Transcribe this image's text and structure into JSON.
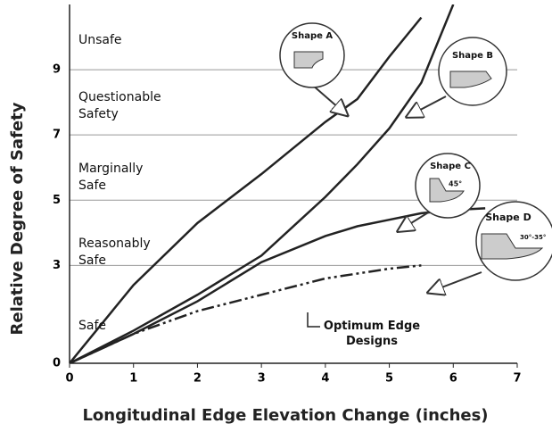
{
  "chart_data": {
    "type": "line",
    "xlabel": "Longitudinal Edge Elevation Change (inches)",
    "ylabel": "Relative Degree of Safety",
    "zones": [
      "Unsafe",
      "Questionable Safety",
      "Marginally Safe",
      "Reasonably Safe",
      "Safe"
    ],
    "annotations": [
      "Shape A",
      "Shape B",
      "Shape C",
      "45°",
      "Shape D",
      "30°-35°",
      "Optimum Edge Designs"
    ],
    "x": [
      0,
      1,
      2,
      3,
      4,
      4.5,
      5,
      5.5,
      6,
      6.5
    ],
    "series": [
      {
        "color": "#222222",
        "dash": false,
        "values": [
          0,
          2.4,
          4.3,
          5.8,
          7.4,
          8.1,
          9.4,
          10.6,
          null,
          null
        ]
      },
      {
        "color": "#222222",
        "dash": false,
        "values": [
          0,
          1.0,
          2.1,
          3.3,
          5.1,
          6.1,
          7.2,
          8.6,
          11,
          null
        ]
      },
      {
        "color": "#222222",
        "dash": false,
        "values": [
          0,
          0.9,
          1.9,
          3.1,
          3.9,
          4.2,
          4.4,
          4.6,
          4.7,
          4.75
        ]
      },
      {
        "color": "#222222",
        "dash": true,
        "values": [
          0,
          0.9,
          1.6,
          2.1,
          2.6,
          2.75,
          2.9,
          3.0,
          null,
          null
        ]
      }
    ],
    "xlim": [
      0,
      7
    ],
    "xticks": [
      0,
      1,
      2,
      3,
      4,
      5,
      6,
      7
    ],
    "ylim": [
      0,
      11
    ],
    "yticks": [
      0,
      3,
      5,
      7,
      9
    ],
    "grid": true
  }
}
